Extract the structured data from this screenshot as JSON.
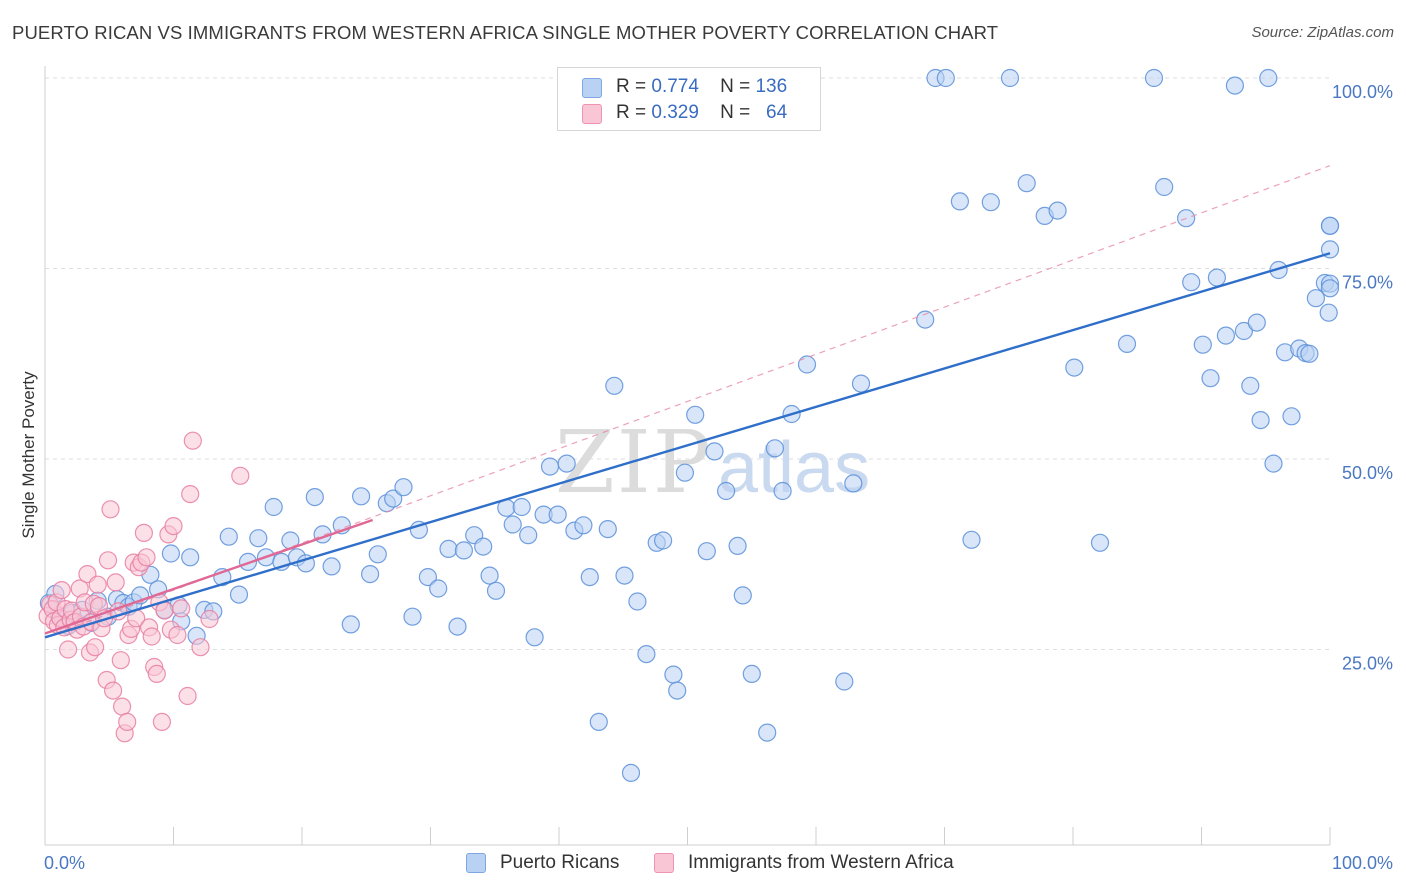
{
  "title": "PUERTO RICAN VS IMMIGRANTS FROM WESTERN AFRICA SINGLE MOTHER POVERTY CORRELATION CHART",
  "source": "Source: ZipAtlas.com",
  "watermark": {
    "zip": "ZIP",
    "atlas": "atlas"
  },
  "legend": {
    "r_label": "R =",
    "n_label": "N =",
    "rows": [
      {
        "r": "0.774",
        "n": "136",
        "fill": "#b9d2f4",
        "stroke": "#7fa6e0"
      },
      {
        "r": "0.329",
        "n": "64",
        "fill": "#f9c6d6",
        "stroke": "#ee93b1"
      }
    ]
  },
  "chart_data": {
    "type": "scatter",
    "title": "PUERTO RICAN VS IMMIGRANTS FROM WESTERN AFRICA SINGLE MOTHER POVERTY CORRELATION CHART",
    "xlabel": "",
    "ylabel": "Single Mother Poverty",
    "xlim": [
      0,
      100
    ],
    "ylim": [
      0,
      100
    ],
    "x_ticks": [
      {
        "value": 0,
        "label": "0.0%"
      },
      {
        "value": 100,
        "label": "100.0%"
      }
    ],
    "y_ticks": [
      {
        "value": 25,
        "label": "25.0%"
      },
      {
        "value": 50,
        "label": "50.0%"
      },
      {
        "value": 75,
        "label": "75.0%"
      },
      {
        "value": 100,
        "label": "100.0%"
      }
    ],
    "grid": true,
    "legend_position": "top-center",
    "series": [
      {
        "name": "Puerto Ricans",
        "color": "#5b8fd9",
        "fill": "#b9d2f4",
        "trend": {
          "x": [
            0,
            100
          ],
          "y": [
            26.6,
            77.0
          ],
          "color": "#2f6fc9",
          "style": "solid"
        },
        "trend_ext": {
          "x": [
            0,
            100
          ],
          "y": [
            26.6,
            88.5
          ],
          "color": "#e88aa8",
          "style": "dashed"
        },
        "points": [
          [
            0.3,
            31.1
          ],
          [
            0.8,
            32.3
          ],
          [
            1.1,
            29.4
          ],
          [
            1.4,
            28.9
          ],
          [
            1.8,
            28.1
          ],
          [
            2.1,
            29.8
          ],
          [
            2.4,
            28.7
          ],
          [
            2.9,
            30.2
          ],
          [
            3.6,
            28.5
          ],
          [
            4.1,
            31.4
          ],
          [
            4.9,
            29.3
          ],
          [
            5.6,
            31.6
          ],
          [
            6.1,
            31.1
          ],
          [
            6.5,
            30.6
          ],
          [
            6.9,
            31.2
          ],
          [
            7.4,
            32.1
          ],
          [
            8.2,
            34.8
          ],
          [
            8.8,
            32.9
          ],
          [
            9.3,
            30.2
          ],
          [
            9.8,
            37.6
          ],
          [
            10.4,
            30.8
          ],
          [
            10.6,
            28.7
          ],
          [
            11.3,
            37.1
          ],
          [
            11.8,
            26.8
          ],
          [
            12.4,
            30.2
          ],
          [
            13.1,
            30.0
          ],
          [
            13.8,
            34.5
          ],
          [
            14.3,
            39.8
          ],
          [
            15.1,
            32.2
          ],
          [
            15.8,
            36.5
          ],
          [
            16.6,
            39.6
          ],
          [
            17.2,
            37.1
          ],
          [
            17.8,
            43.7
          ],
          [
            18.4,
            36.5
          ],
          [
            19.1,
            39.3
          ],
          [
            19.6,
            37.1
          ],
          [
            20.3,
            36.3
          ],
          [
            21.0,
            45.0
          ],
          [
            21.6,
            40.1
          ],
          [
            22.3,
            35.9
          ],
          [
            23.1,
            41.3
          ],
          [
            23.8,
            28.3
          ],
          [
            24.6,
            45.1
          ],
          [
            25.3,
            34.9
          ],
          [
            25.9,
            37.5
          ],
          [
            26.6,
            44.2
          ],
          [
            27.1,
            44.8
          ],
          [
            27.9,
            46.3
          ],
          [
            28.6,
            29.3
          ],
          [
            29.1,
            40.7
          ],
          [
            29.8,
            34.5
          ],
          [
            30.6,
            33.0
          ],
          [
            31.4,
            38.2
          ],
          [
            32.1,
            28.0
          ],
          [
            32.6,
            38.0
          ],
          [
            33.4,
            40.0
          ],
          [
            34.1,
            38.5
          ],
          [
            34.6,
            34.7
          ],
          [
            35.1,
            32.7
          ],
          [
            35.9,
            43.6
          ],
          [
            36.4,
            41.4
          ],
          [
            37.1,
            43.7
          ],
          [
            37.6,
            40.0
          ],
          [
            38.1,
            26.6
          ],
          [
            38.8,
            42.7
          ],
          [
            39.3,
            49.0
          ],
          [
            39.9,
            42.7
          ],
          [
            40.6,
            49.4
          ],
          [
            41.2,
            40.6
          ],
          [
            41.9,
            41.3
          ],
          [
            42.4,
            34.5
          ],
          [
            43.1,
            15.5
          ],
          [
            43.8,
            40.8
          ],
          [
            44.3,
            59.6
          ],
          [
            45.1,
            34.7
          ],
          [
            45.6,
            8.8
          ],
          [
            46.1,
            31.3
          ],
          [
            46.8,
            24.4
          ],
          [
            47.6,
            39.0
          ],
          [
            48.1,
            39.3
          ],
          [
            48.9,
            21.7
          ],
          [
            49.2,
            19.6
          ],
          [
            49.8,
            48.2
          ],
          [
            50.6,
            55.8
          ],
          [
            51.5,
            37.9
          ],
          [
            52.1,
            51.0
          ],
          [
            53.0,
            45.8
          ],
          [
            53.9,
            38.6
          ],
          [
            54.3,
            32.1
          ],
          [
            55.0,
            21.8
          ],
          [
            56.2,
            14.1
          ],
          [
            56.8,
            51.4
          ],
          [
            57.4,
            45.8
          ],
          [
            58.1,
            55.9
          ],
          [
            59.3,
            62.4
          ],
          [
            62.2,
            20.8
          ],
          [
            62.9,
            46.8
          ],
          [
            63.5,
            59.9
          ],
          [
            68.5,
            68.3
          ],
          [
            69.3,
            100.0
          ],
          [
            70.1,
            100.0
          ],
          [
            71.2,
            83.8
          ],
          [
            72.1,
            39.4
          ],
          [
            73.6,
            83.7
          ],
          [
            75.1,
            100.0
          ],
          [
            76.4,
            86.2
          ],
          [
            77.8,
            81.9
          ],
          [
            78.8,
            82.6
          ],
          [
            80.1,
            62.0
          ],
          [
            82.1,
            39.0
          ],
          [
            84.2,
            65.1
          ],
          [
            86.3,
            100.0
          ],
          [
            87.1,
            85.7
          ],
          [
            88.8,
            81.6
          ],
          [
            89.2,
            73.2
          ],
          [
            90.1,
            65.0
          ],
          [
            90.7,
            60.6
          ],
          [
            91.2,
            73.8
          ],
          [
            91.9,
            66.2
          ],
          [
            92.6,
            99.0
          ],
          [
            93.3,
            66.8
          ],
          [
            93.8,
            59.6
          ],
          [
            94.3,
            67.9
          ],
          [
            94.6,
            55.1
          ],
          [
            95.2,
            100.0
          ],
          [
            95.6,
            49.4
          ],
          [
            96.0,
            74.8
          ],
          [
            96.5,
            64.0
          ],
          [
            97.0,
            55.6
          ],
          [
            97.6,
            64.5
          ],
          [
            98.1,
            63.9
          ],
          [
            98.4,
            63.8
          ],
          [
            98.9,
            71.1
          ],
          [
            99.6,
            73.1
          ],
          [
            99.9,
            69.2
          ],
          [
            100.0,
            77.5
          ],
          [
            100.0,
            73.0
          ],
          [
            100.0,
            80.6
          ],
          [
            100.0,
            72.4
          ],
          [
            100.0,
            80.6
          ]
        ]
      },
      {
        "name": "Immigrants from Western Africa",
        "color": "#e87ea1",
        "fill": "#f9c6d6",
        "trend": {
          "x": [
            0,
            25.5
          ],
          "y": [
            27.1,
            42.0
          ],
          "color": "#e06894",
          "style": "solid"
        },
        "points": [
          [
            0.2,
            29.4
          ],
          [
            0.4,
            30.9
          ],
          [
            0.6,
            30.3
          ],
          [
            0.7,
            28.7
          ],
          [
            0.9,
            31.2
          ],
          [
            1.0,
            28.2
          ],
          [
            1.2,
            29.1
          ],
          [
            1.3,
            32.8
          ],
          [
            1.5,
            27.9
          ],
          [
            1.6,
            30.3
          ],
          [
            1.8,
            25.0
          ],
          [
            2.0,
            28.9
          ],
          [
            2.1,
            30.1
          ],
          [
            2.3,
            28.6
          ],
          [
            2.5,
            27.6
          ],
          [
            2.7,
            33.0
          ],
          [
            2.8,
            29.3
          ],
          [
            3.0,
            28.0
          ],
          [
            3.1,
            31.2
          ],
          [
            3.3,
            34.9
          ],
          [
            3.5,
            24.6
          ],
          [
            3.6,
            28.6
          ],
          [
            3.8,
            31.0
          ],
          [
            3.9,
            25.3
          ],
          [
            4.1,
            33.5
          ],
          [
            4.2,
            30.7
          ],
          [
            4.4,
            27.8
          ],
          [
            4.6,
            29.1
          ],
          [
            4.8,
            21.0
          ],
          [
            4.9,
            36.7
          ],
          [
            5.1,
            43.4
          ],
          [
            5.3,
            19.6
          ],
          [
            5.5,
            33.8
          ],
          [
            5.7,
            30.0
          ],
          [
            5.9,
            23.6
          ],
          [
            6.0,
            17.5
          ],
          [
            6.2,
            14.0
          ],
          [
            6.4,
            15.5
          ],
          [
            6.5,
            26.9
          ],
          [
            6.7,
            27.7
          ],
          [
            6.9,
            36.4
          ],
          [
            7.1,
            29.1
          ],
          [
            7.3,
            35.8
          ],
          [
            7.5,
            36.4
          ],
          [
            7.7,
            40.3
          ],
          [
            7.9,
            37.1
          ],
          [
            8.1,
            27.9
          ],
          [
            8.3,
            26.7
          ],
          [
            8.5,
            22.7
          ],
          [
            8.7,
            21.8
          ],
          [
            8.9,
            31.2
          ],
          [
            9.1,
            15.5
          ],
          [
            9.3,
            30.1
          ],
          [
            9.6,
            40.1
          ],
          [
            9.8,
            27.6
          ],
          [
            10.0,
            41.2
          ],
          [
            10.3,
            26.9
          ],
          [
            10.6,
            30.4
          ],
          [
            11.1,
            18.9
          ],
          [
            11.3,
            45.4
          ],
          [
            11.5,
            52.4
          ],
          [
            12.1,
            25.3
          ],
          [
            12.8,
            29.0
          ],
          [
            15.2,
            47.8
          ]
        ]
      }
    ]
  },
  "bottom_legend": [
    {
      "name": "Puerto Ricans",
      "fill": "#b9d2f4",
      "stroke": "#7fa6e0"
    },
    {
      "name": "Immigrants from Western Africa",
      "fill": "#f9c6d6",
      "stroke": "#ee93b1"
    }
  ]
}
